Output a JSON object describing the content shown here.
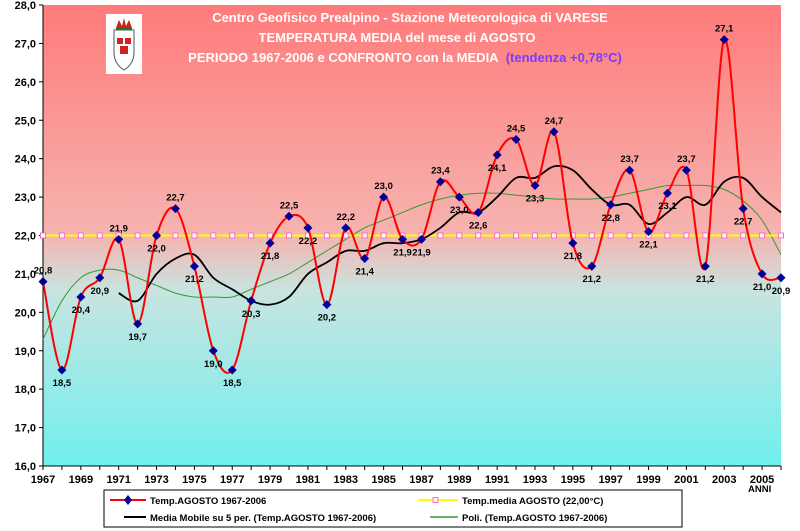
{
  "chart_data": {
    "type": "line",
    "title": [
      "Centro Geofisico Prealpino - Stazione Meteorologica di VARESE",
      "TEMPERATURA MEDIA del mese di AGOSTO",
      "PERIODO 1967-2006 e CONFRONTO con la MEDIA"
    ],
    "trend_note": "(tendenza +0,78°C)",
    "xlabel": "ANNI",
    "ylabel": "",
    "x": [
      1967,
      1968,
      1969,
      1970,
      1971,
      1972,
      1973,
      1974,
      1975,
      1976,
      1977,
      1978,
      1979,
      1980,
      1981,
      1982,
      1983,
      1984,
      1985,
      1986,
      1987,
      1988,
      1989,
      1990,
      1991,
      1992,
      1993,
      1994,
      1995,
      1996,
      1997,
      1998,
      1999,
      2000,
      2001,
      2002,
      2003,
      2004,
      2005,
      2006
    ],
    "xlim": [
      1967,
      2006
    ],
    "ylim": [
      16.0,
      28.0
    ],
    "y_ticks": [
      "16,0",
      "17,0",
      "18,0",
      "19,0",
      "20,0",
      "21,0",
      "22,0",
      "23,0",
      "24,0",
      "25,0",
      "26,0",
      "27,0",
      "28,0"
    ],
    "x_ticks": [
      "1967",
      "1969",
      "1971",
      "1973",
      "1975",
      "1977",
      "1979",
      "1981",
      "1983",
      "1985",
      "1987",
      "1989",
      "1991",
      "1993",
      "1995",
      "1997",
      "1999",
      "2001",
      "2003",
      "2005"
    ],
    "grid": false,
    "legend_position": "bottom",
    "series": [
      {
        "name": "Temp.AGOSTO 1967-2006",
        "color": "#ff0000",
        "marker_color": "#000099",
        "values": [
          20.8,
          18.5,
          20.4,
          20.9,
          21.9,
          19.7,
          22.0,
          22.7,
          21.2,
          19.0,
          18.5,
          20.3,
          21.8,
          22.5,
          22.2,
          20.2,
          22.2,
          21.4,
          23.0,
          21.9,
          21.9,
          23.4,
          23.0,
          22.6,
          24.1,
          24.5,
          23.3,
          24.7,
          21.8,
          21.2,
          22.8,
          23.7,
          22.1,
          23.1,
          23.7,
          21.2,
          27.1,
          22.7,
          21.0,
          20.9
        ],
        "labels": [
          "20,8",
          "18,5",
          "20,4",
          "20,9",
          "21,9",
          "19,7",
          "22,0",
          "22,7",
          "21,2",
          "19,0",
          "18,5",
          "20,3",
          "21,8",
          "22,5",
          "22,2",
          "20,2",
          "22,2",
          "21,4",
          "23,0",
          "21,9",
          "21,9",
          "23,4",
          "23,0",
          "22,6",
          "24,1",
          "24,5",
          "23,3",
          "24,7",
          "21,8",
          "21,2",
          "22,8",
          "23,7",
          "22,1",
          "23,1",
          "23,7",
          "21,2",
          "27,1",
          "22,7",
          "21,0",
          "20,9"
        ]
      },
      {
        "name": "Temp.media AGOSTO (22,00°C)",
        "color": "#ffff00",
        "marker_color": "#ff66cc",
        "value": 22.0
      },
      {
        "name": "Media Mobile su 5 per. (Temp.AGOSTO 1967-2006)",
        "color": "#000000",
        "x": [
          1971,
          1972,
          1973,
          1974,
          1975,
          1976,
          1977,
          1978,
          1979,
          1980,
          1981,
          1982,
          1983,
          1984,
          1985,
          1986,
          1987,
          1988,
          1989,
          1990,
          1991,
          1992,
          1993,
          1994,
          1995,
          1996,
          1997,
          1998,
          1999,
          2000,
          2001,
          2002,
          2003,
          2004,
          2005,
          2006
        ],
        "values": [
          20.5,
          20.3,
          21.0,
          21.4,
          21.5,
          20.9,
          20.6,
          20.3,
          20.2,
          20.4,
          21.0,
          21.3,
          21.6,
          21.6,
          21.8,
          21.8,
          21.9,
          22.2,
          22.6,
          22.6,
          23.0,
          23.5,
          23.5,
          23.8,
          23.7,
          23.2,
          22.8,
          22.8,
          22.3,
          22.6,
          23.0,
          22.8,
          23.4,
          23.5,
          23.0,
          22.6
        ]
      },
      {
        "name": "Poli. (Temp.AGOSTO 1967-2006)",
        "color": "#339933",
        "x": [
          1967,
          1968,
          1969,
          1970,
          1971,
          1972,
          1973,
          1974,
          1975,
          1976,
          1977,
          1978,
          1979,
          1980,
          1981,
          1982,
          1983,
          1984,
          1985,
          1986,
          1987,
          1988,
          1989,
          1990,
          1991,
          1992,
          1993,
          1994,
          1995,
          1996,
          1997,
          1998,
          1999,
          2000,
          2001,
          2002,
          2003,
          2004,
          2005,
          2006
        ],
        "values": [
          19.3,
          20.3,
          20.9,
          21.1,
          21.1,
          20.9,
          20.7,
          20.5,
          20.4,
          20.4,
          20.4,
          20.6,
          20.8,
          21.0,
          21.3,
          21.6,
          21.9,
          22.2,
          22.4,
          22.6,
          22.8,
          22.95,
          23.05,
          23.1,
          23.1,
          23.05,
          23.0,
          22.95,
          22.95,
          22.95,
          23.0,
          23.1,
          23.2,
          23.3,
          23.3,
          23.3,
          23.2,
          22.9,
          22.4,
          21.5
        ]
      }
    ]
  }
}
